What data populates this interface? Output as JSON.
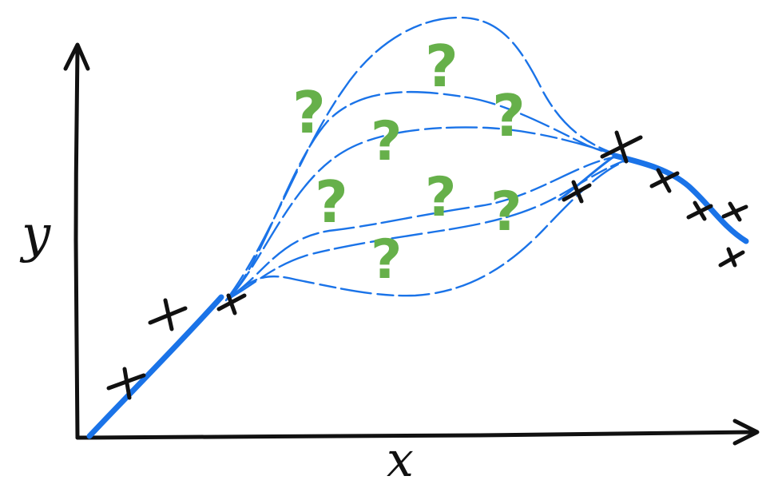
{
  "labels": {
    "y_axis": "y",
    "x_axis": "x",
    "unknown_mark": "?"
  },
  "colors": {
    "axis": "#111111",
    "known_curve": "#1a73e8",
    "uncertain_curves": "#1a73e8",
    "question_marks": "#66b04a",
    "observations": "#111111"
  }
}
